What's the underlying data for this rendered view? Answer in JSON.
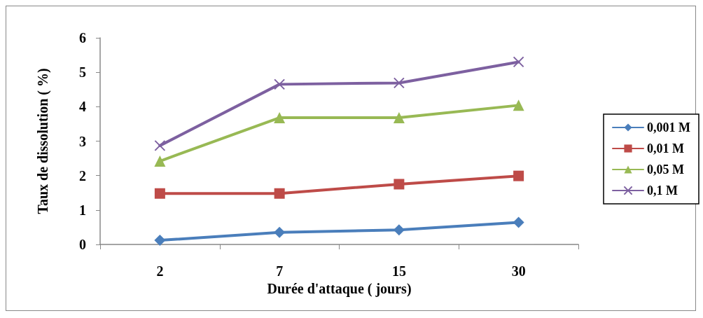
{
  "chart_data": {
    "type": "line",
    "xlabel": "Durée d'attaque ( jours)",
    "ylabel": "Taux de dissolution ( %)",
    "categories": [
      "2",
      "7",
      "15",
      "30"
    ],
    "series": [
      {
        "name": "0,001 M",
        "color": "#4a7ebb",
        "marker": "diamond",
        "values": [
          0.12,
          0.35,
          0.42,
          0.64
        ]
      },
      {
        "name": "0,01 M",
        "color": "#be4b48",
        "marker": "square",
        "values": [
          1.48,
          1.48,
          1.75,
          1.99
        ]
      },
      {
        "name": "0,05 M",
        "color": "#98b954",
        "marker": "triangle",
        "values": [
          2.42,
          3.68,
          3.68,
          4.04
        ]
      },
      {
        "name": "0,1 M",
        "color": "#7d60a0",
        "marker": "cross",
        "values": [
          2.87,
          4.65,
          4.69,
          5.3
        ]
      }
    ],
    "ylim": [
      0,
      6
    ],
    "yticks": [
      0,
      1,
      2,
      3,
      4,
      5,
      6
    ],
    "grid": false,
    "legend": "right"
  }
}
